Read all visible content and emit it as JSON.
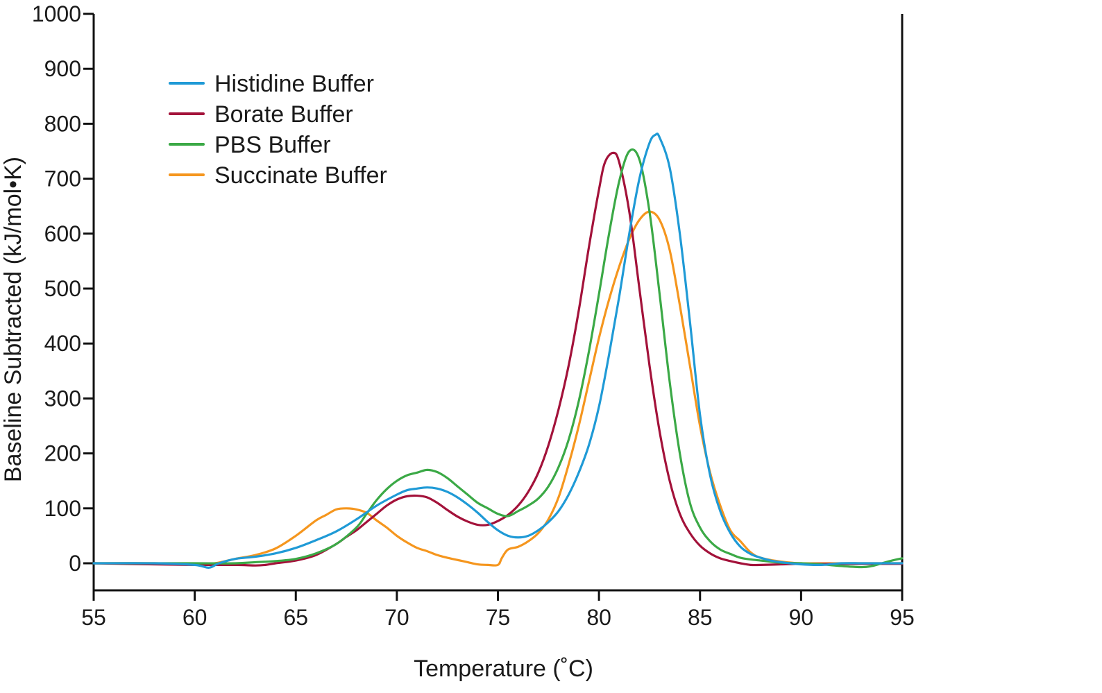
{
  "chart_data": {
    "type": "line",
    "title": "",
    "xlabel": "Temperature (˚C)",
    "ylabel": "Baseline Subtracted (kJ/mol•K)",
    "xlim": [
      55,
      95
    ],
    "ylim": [
      -50,
      1000
    ],
    "xticks": [
      55,
      60,
      65,
      70,
      75,
      80,
      85,
      90,
      95
    ],
    "yticks": [
      0,
      100,
      200,
      300,
      400,
      500,
      600,
      700,
      800,
      900,
      1000
    ],
    "grid": false,
    "legend_position": "top-left",
    "series": [
      {
        "name": "Histidine Buffer",
        "color": "#1f9ad6",
        "x": [
          55,
          58,
          60,
          60.7,
          61.2,
          62,
          63,
          64,
          65,
          66,
          67,
          68,
          69,
          70,
          70.5,
          71,
          71.5,
          72,
          72.5,
          73,
          73.5,
          74,
          74.5,
          75,
          75.5,
          76,
          76.5,
          77,
          77.5,
          78,
          78.5,
          79,
          79.5,
          80,
          80.5,
          81,
          81.5,
          82,
          82.5,
          82.8,
          83,
          83.5,
          84,
          84.5,
          85,
          85.5,
          86,
          86.5,
          87,
          87.5,
          88,
          88.5,
          89,
          90,
          91,
          92,
          93,
          94,
          95
        ],
        "y": [
          0,
          0,
          -3,
          -8,
          0,
          8,
          12,
          18,
          28,
          42,
          58,
          80,
          105,
          125,
          133,
          136,
          138,
          136,
          130,
          120,
          107,
          92,
          75,
          60,
          50,
          47,
          50,
          60,
          75,
          95,
          125,
          165,
          215,
          285,
          380,
          485,
          600,
          700,
          765,
          780,
          775,
          720,
          600,
          440,
          270,
          160,
          95,
          55,
          30,
          17,
          10,
          5,
          2,
          -2,
          -3,
          0,
          0,
          0,
          0
        ]
      },
      {
        "name": "Borate Buffer",
        "color": "#a3123a",
        "x": [
          55,
          58,
          60,
          62,
          63,
          63.5,
          64,
          65,
          66,
          67,
          67.5,
          68,
          68.5,
          69,
          69.5,
          70,
          70.5,
          71,
          71.5,
          72,
          72.5,
          73,
          73.5,
          74,
          74.5,
          75,
          75.5,
          76,
          76.5,
          77,
          77.5,
          78,
          78.5,
          79,
          79.5,
          80,
          80.3,
          80.7,
          81,
          81.5,
          82,
          82.5,
          83,
          83.5,
          84,
          84.5,
          85,
          85.5,
          86,
          86.5,
          87,
          87.5,
          88,
          89,
          90,
          91,
          92,
          93,
          95
        ],
        "y": [
          0,
          -2,
          -3,
          -3,
          -4,
          -3,
          0,
          5,
          15,
          35,
          48,
          60,
          75,
          90,
          105,
          116,
          122,
          123,
          120,
          110,
          97,
          85,
          76,
          70,
          70,
          77,
          88,
          105,
          130,
          165,
          215,
          280,
          360,
          460,
          575,
          680,
          730,
          747,
          730,
          640,
          500,
          360,
          240,
          150,
          90,
          55,
          32,
          18,
          9,
          4,
          0,
          -3,
          -3,
          -2,
          -1,
          -1,
          -1,
          -1,
          -1
        ]
      },
      {
        "name": "PBS Buffer",
        "color": "#3ba946",
        "x": [
          55,
          58,
          60,
          62,
          63,
          64,
          65,
          66,
          67,
          68,
          68.5,
          69,
          69.5,
          70,
          70.5,
          71,
          71.5,
          72,
          72.5,
          73,
          73.5,
          74,
          74.5,
          75,
          75.5,
          76,
          76.5,
          77,
          77.5,
          78,
          78.5,
          79,
          79.5,
          80,
          80.5,
          81,
          81.5,
          82,
          82.5,
          83,
          83.5,
          84,
          84.5,
          85,
          85.5,
          86,
          86.5,
          87,
          87.5,
          88,
          88.5,
          89,
          90,
          91,
          92,
          93,
          93.5,
          94,
          94.5,
          95
        ],
        "y": [
          0,
          0,
          0,
          0,
          2,
          4,
          8,
          18,
          35,
          65,
          90,
          115,
          135,
          150,
          160,
          165,
          170,
          166,
          155,
          140,
          125,
          110,
          100,
          90,
          86,
          95,
          105,
          118,
          140,
          175,
          225,
          295,
          385,
          490,
          600,
          695,
          750,
          735,
          640,
          490,
          330,
          200,
          110,
          65,
          40,
          25,
          17,
          10,
          7,
          5,
          3,
          1,
          0,
          -2,
          -5,
          -7,
          -5,
          0,
          5,
          9
        ]
      },
      {
        "name": "Succinate Buffer",
        "color": "#f5961e",
        "x": [
          55,
          58,
          60,
          61,
          62,
          63,
          64,
          65,
          66,
          66.5,
          67,
          67.5,
          68,
          68.5,
          69,
          69.5,
          70,
          70.5,
          71,
          71.5,
          72,
          72.5,
          73,
          73.5,
          74,
          74.5,
          75,
          75.2,
          75.5,
          76,
          76.5,
          77,
          77.5,
          78,
          78.5,
          79,
          79.5,
          80,
          80.5,
          81,
          81.5,
          82,
          82.5,
          83,
          83.5,
          84,
          84.5,
          85,
          85.5,
          86,
          86.5,
          87,
          87.5,
          88,
          89,
          90,
          92,
          95
        ],
        "y": [
          0,
          0,
          -2,
          0,
          8,
          15,
          27,
          50,
          78,
          88,
          98,
          100,
          98,
          92,
          78,
          65,
          50,
          38,
          28,
          22,
          15,
          10,
          6,
          2,
          -2,
          -3,
          -3,
          10,
          25,
          30,
          40,
          55,
          80,
          120,
          180,
          250,
          330,
          410,
          480,
          540,
          590,
          625,
          640,
          625,
          570,
          470,
          360,
          250,
          165,
          105,
          60,
          40,
          20,
          10,
          3,
          0,
          0,
          0
        ]
      }
    ]
  }
}
